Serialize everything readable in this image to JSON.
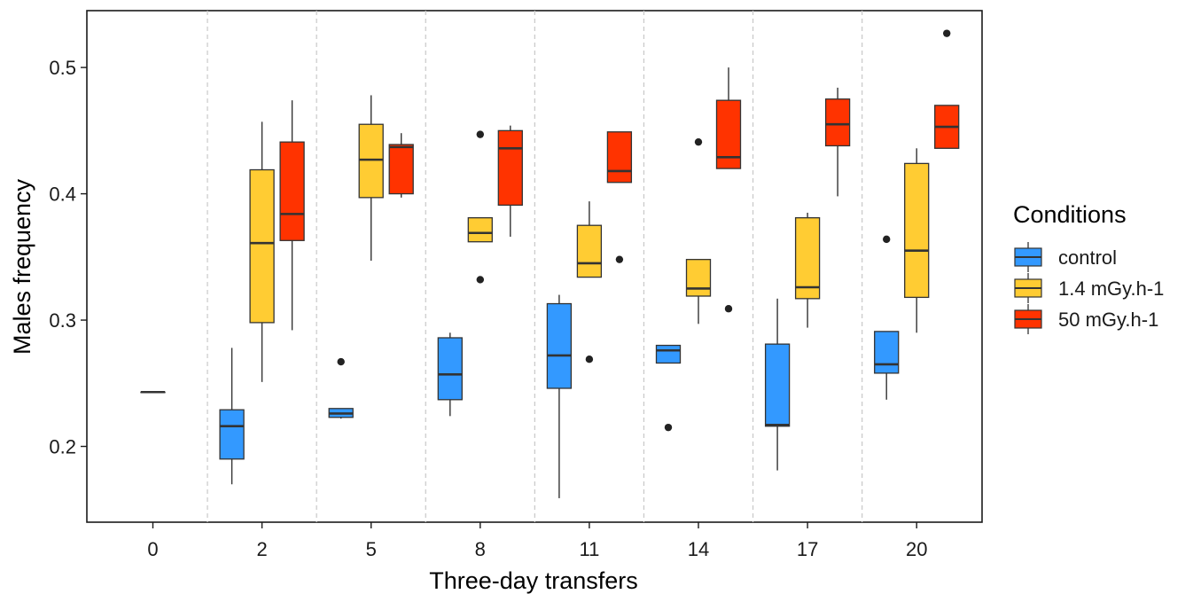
{
  "chart_data": {
    "type": "boxplot",
    "xlabel": "Three-day transfers",
    "ylabel": "Males frequency",
    "ylim": [
      0.14,
      0.545
    ],
    "yticks": [
      0.2,
      0.3,
      0.4,
      0.5
    ],
    "categories": [
      "0",
      "2",
      "5",
      "8",
      "11",
      "14",
      "17",
      "20"
    ],
    "grid": "vertical dashed separators between categories",
    "legend": {
      "title": "Conditions",
      "placement": "right",
      "entries": [
        "control",
        "1.4 mGy.h-1",
        "50 mGy.h-1"
      ]
    },
    "colors": {
      "control": "#3399ff",
      "1.4 mGy.h-1": "#ffcc33",
      "50 mGy.h-1": "#ff3300"
    },
    "series": [
      {
        "name": "control",
        "boxes": [
          {
            "category": "0",
            "min": 0.243,
            "q1": 0.243,
            "median": 0.243,
            "q3": 0.243,
            "max": 0.243,
            "outliers": []
          },
          {
            "category": "2",
            "min": 0.17,
            "q1": 0.19,
            "median": 0.216,
            "q3": 0.229,
            "max": 0.278,
            "outliers": []
          },
          {
            "category": "5",
            "min": 0.222,
            "q1": 0.223,
            "median": 0.226,
            "q3": 0.23,
            "max": 0.23,
            "outliers": [
              0.267
            ]
          },
          {
            "category": "8",
            "min": 0.224,
            "q1": 0.237,
            "median": 0.257,
            "q3": 0.286,
            "max": 0.29,
            "outliers": []
          },
          {
            "category": "11",
            "min": 0.159,
            "q1": 0.246,
            "median": 0.272,
            "q3": 0.313,
            "max": 0.32,
            "outliers": []
          },
          {
            "category": "14",
            "min": 0.266,
            "q1": 0.266,
            "median": 0.276,
            "q3": 0.28,
            "max": 0.28,
            "outliers": [
              0.215
            ]
          },
          {
            "category": "17",
            "min": 0.181,
            "q1": 0.216,
            "median": 0.217,
            "q3": 0.281,
            "max": 0.317,
            "outliers": []
          },
          {
            "category": "20",
            "min": 0.237,
            "q1": 0.258,
            "median": 0.265,
            "q3": 0.291,
            "max": 0.291,
            "outliers": [
              0.364
            ]
          }
        ]
      },
      {
        "name": "1.4 mGy.h-1",
        "boxes": [
          {
            "category": "2",
            "min": 0.251,
            "q1": 0.298,
            "median": 0.361,
            "q3": 0.419,
            "max": 0.457,
            "outliers": []
          },
          {
            "category": "5",
            "min": 0.347,
            "q1": 0.397,
            "median": 0.427,
            "q3": 0.455,
            "max": 0.478,
            "outliers": []
          },
          {
            "category": "8",
            "min": 0.362,
            "q1": 0.362,
            "median": 0.369,
            "q3": 0.381,
            "max": 0.381,
            "outliers": [
              0.447,
              0.332
            ]
          },
          {
            "category": "11",
            "min": 0.334,
            "q1": 0.334,
            "median": 0.345,
            "q3": 0.375,
            "max": 0.394,
            "outliers": [
              0.269
            ]
          },
          {
            "category": "14",
            "min": 0.297,
            "q1": 0.319,
            "median": 0.325,
            "q3": 0.348,
            "max": 0.348,
            "outliers": [
              0.441
            ]
          },
          {
            "category": "17",
            "min": 0.294,
            "q1": 0.317,
            "median": 0.326,
            "q3": 0.381,
            "max": 0.385,
            "outliers": []
          },
          {
            "category": "20",
            "min": 0.29,
            "q1": 0.318,
            "median": 0.355,
            "q3": 0.424,
            "max": 0.436,
            "outliers": []
          }
        ]
      },
      {
        "name": "50 mGy.h-1",
        "boxes": [
          {
            "category": "2",
            "min": 0.292,
            "q1": 0.363,
            "median": 0.384,
            "q3": 0.441,
            "max": 0.474,
            "outliers": []
          },
          {
            "category": "5",
            "min": 0.397,
            "q1": 0.4,
            "median": 0.437,
            "q3": 0.439,
            "max": 0.448,
            "outliers": []
          },
          {
            "category": "8",
            "min": 0.366,
            "q1": 0.391,
            "median": 0.436,
            "q3": 0.45,
            "max": 0.454,
            "outliers": []
          },
          {
            "category": "11",
            "min": 0.409,
            "q1": 0.409,
            "median": 0.418,
            "q3": 0.449,
            "max": 0.449,
            "outliers": [
              0.348
            ]
          },
          {
            "category": "14",
            "min": 0.42,
            "q1": 0.42,
            "median": 0.429,
            "q3": 0.474,
            "max": 0.5,
            "outliers": [
              0.309
            ]
          },
          {
            "category": "17",
            "min": 0.398,
            "q1": 0.438,
            "median": 0.455,
            "q3": 0.475,
            "max": 0.484,
            "outliers": []
          },
          {
            "category": "20",
            "min": 0.436,
            "q1": 0.436,
            "median": 0.453,
            "q3": 0.47,
            "max": 0.47,
            "outliers": [
              0.527
            ]
          }
        ]
      }
    ]
  }
}
